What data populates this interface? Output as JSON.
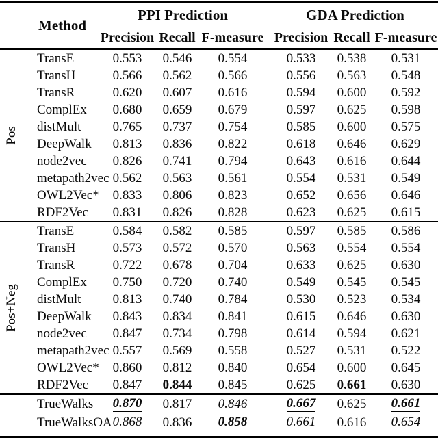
{
  "header": {
    "method_label": "Method",
    "col_groups": [
      {
        "label": "PPI Prediction",
        "columns": [
          "Precision",
          "Recall",
          "F-measure"
        ]
      },
      {
        "label": "GDA Prediction",
        "columns": [
          "Precision",
          "Recall",
          "F-measure"
        ]
      }
    ]
  },
  "groups": [
    {
      "label": "Pos",
      "rows": [
        {
          "method": "TransE",
          "values": [
            {
              "v": "0.553"
            },
            {
              "v": "0.546"
            },
            {
              "v": "0.554"
            },
            {
              "v": "0.533"
            },
            {
              "v": "0.538"
            },
            {
              "v": "0.531"
            }
          ]
        },
        {
          "method": "TransH",
          "values": [
            {
              "v": "0.566"
            },
            {
              "v": "0.562"
            },
            {
              "v": "0.566"
            },
            {
              "v": "0.556"
            },
            {
              "v": "0.563"
            },
            {
              "v": "0.548"
            }
          ]
        },
        {
          "method": "TransR",
          "values": [
            {
              "v": "0.620"
            },
            {
              "v": "0.607"
            },
            {
              "v": "0.616"
            },
            {
              "v": "0.594"
            },
            {
              "v": "0.600"
            },
            {
              "v": "0.592"
            }
          ]
        },
        {
          "method": "ComplEx",
          "values": [
            {
              "v": "0.680"
            },
            {
              "v": "0.659"
            },
            {
              "v": "0.679"
            },
            {
              "v": "0.597"
            },
            {
              "v": "0.625"
            },
            {
              "v": "0.598"
            }
          ]
        },
        {
          "method": "distMult",
          "values": [
            {
              "v": "0.765"
            },
            {
              "v": "0.737"
            },
            {
              "v": "0.754"
            },
            {
              "v": "0.585"
            },
            {
              "v": "0.600"
            },
            {
              "v": "0.575"
            }
          ]
        },
        {
          "method": "DeepWalk",
          "values": [
            {
              "v": "0.813"
            },
            {
              "v": "0.836"
            },
            {
              "v": "0.822"
            },
            {
              "v": "0.618"
            },
            {
              "v": "0.646"
            },
            {
              "v": "0.629"
            }
          ]
        },
        {
          "method": "node2vec",
          "values": [
            {
              "v": "0.826"
            },
            {
              "v": "0.741"
            },
            {
              "v": "0.794"
            },
            {
              "v": "0.643"
            },
            {
              "v": "0.616"
            },
            {
              "v": "0.644"
            }
          ]
        },
        {
          "method": "metapath2vec",
          "values": [
            {
              "v": "0.562"
            },
            {
              "v": "0.563"
            },
            {
              "v": "0.561"
            },
            {
              "v": "0.554"
            },
            {
              "v": "0.531"
            },
            {
              "v": "0.549"
            }
          ]
        },
        {
          "method": "OWL2Vec*",
          "values": [
            {
              "v": "0.833"
            },
            {
              "v": "0.806"
            },
            {
              "v": "0.823"
            },
            {
              "v": "0.652"
            },
            {
              "v": "0.656"
            },
            {
              "v": "0.646"
            }
          ]
        },
        {
          "method": "RDF2Vec",
          "values": [
            {
              "v": "0.831"
            },
            {
              "v": "0.826"
            },
            {
              "v": "0.828"
            },
            {
              "v": "0.623"
            },
            {
              "v": "0.625"
            },
            {
              "v": "0.615"
            }
          ]
        }
      ]
    },
    {
      "label": "Pos+Neg",
      "rows": [
        {
          "method": "TransE",
          "values": [
            {
              "v": "0.584"
            },
            {
              "v": "0.582"
            },
            {
              "v": "0.585"
            },
            {
              "v": "0.597"
            },
            {
              "v": "0.585"
            },
            {
              "v": "0.586"
            }
          ]
        },
        {
          "method": "TransH",
          "values": [
            {
              "v": "0.573"
            },
            {
              "v": "0.572"
            },
            {
              "v": "0.570"
            },
            {
              "v": "0.563"
            },
            {
              "v": "0.554"
            },
            {
              "v": "0.554"
            }
          ]
        },
        {
          "method": "TransR",
          "values": [
            {
              "v": "0.722"
            },
            {
              "v": "0.678"
            },
            {
              "v": "0.704"
            },
            {
              "v": "0.633"
            },
            {
              "v": "0.625"
            },
            {
              "v": "0.630"
            }
          ]
        },
        {
          "method": "ComplEx",
          "values": [
            {
              "v": "0.750"
            },
            {
              "v": "0.720"
            },
            {
              "v": "0.740"
            },
            {
              "v": "0.549"
            },
            {
              "v": "0.545"
            },
            {
              "v": "0.545"
            }
          ]
        },
        {
          "method": "distMult",
          "values": [
            {
              "v": "0.813"
            },
            {
              "v": "0.740"
            },
            {
              "v": "0.784"
            },
            {
              "v": "0.530"
            },
            {
              "v": "0.523"
            },
            {
              "v": "0.534"
            }
          ]
        },
        {
          "method": "DeepWalk",
          "values": [
            {
              "v": "0.843"
            },
            {
              "v": "0.834"
            },
            {
              "v": "0.841"
            },
            {
              "v": "0.615"
            },
            {
              "v": "0.646"
            },
            {
              "v": "0.630"
            }
          ]
        },
        {
          "method": "node2vec",
          "values": [
            {
              "v": "0.847"
            },
            {
              "v": "0.734"
            },
            {
              "v": "0.798"
            },
            {
              "v": "0.614"
            },
            {
              "v": "0.594"
            },
            {
              "v": "0.621"
            }
          ]
        },
        {
          "method": "metapath2vec",
          "values": [
            {
              "v": "0.557"
            },
            {
              "v": "0.569"
            },
            {
              "v": "0.558"
            },
            {
              "v": "0.527"
            },
            {
              "v": "0.531"
            },
            {
              "v": "0.522"
            }
          ]
        },
        {
          "method": "OWL2Vec*",
          "values": [
            {
              "v": "0.860"
            },
            {
              "v": "0.812"
            },
            {
              "v": "0.840"
            },
            {
              "v": "0.654"
            },
            {
              "v": "0.600"
            },
            {
              "v": "0.645"
            }
          ]
        },
        {
          "method": "RDF2Vec",
          "values": [
            {
              "v": "0.847"
            },
            {
              "v": "0.844",
              "s": "b"
            },
            {
              "v": "0.845"
            },
            {
              "v": "0.625"
            },
            {
              "v": "0.661",
              "s": "b"
            },
            {
              "v": "0.630"
            }
          ]
        }
      ]
    }
  ],
  "footer_rows": [
    {
      "method": "TrueWalks",
      "values": [
        {
          "v": "0.870",
          "s": "biu"
        },
        {
          "v": "0.817"
        },
        {
          "v": "0.846",
          "s": "i"
        },
        {
          "v": "0.667",
          "s": "biu"
        },
        {
          "v": "0.625"
        },
        {
          "v": "0.661",
          "s": "biu"
        }
      ]
    },
    {
      "method": "TrueWalksOA",
      "values": [
        {
          "v": "0.868",
          "s": "iu"
        },
        {
          "v": "0.836"
        },
        {
          "v": "0.858",
          "s": "biu"
        },
        {
          "v": "0.661",
          "s": "iu"
        },
        {
          "v": "0.616"
        },
        {
          "v": "0.654",
          "s": "iu"
        }
      ]
    }
  ],
  "colors": {
    "text": "#0a0a0a",
    "rule": "#000000",
    "background": "#ffffff"
  }
}
